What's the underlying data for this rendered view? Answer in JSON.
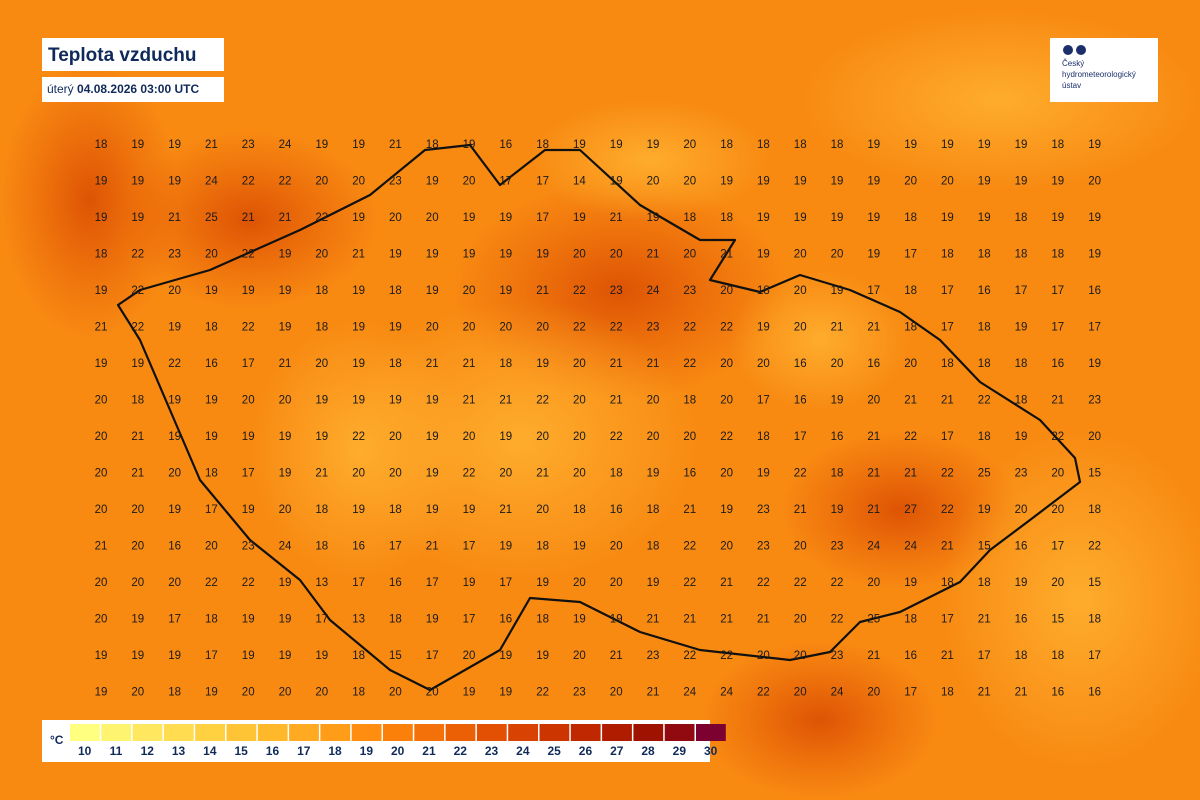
{
  "header": {
    "title": "Teplota vzduchu",
    "weekday": "úterý",
    "datetime": "04.08.2026 03:00 UTC"
  },
  "logo": {
    "lines": [
      "Český",
      "hydrometeorologický",
      "ústav"
    ]
  },
  "grid": {
    "rows": [
      [
        18,
        19,
        19,
        21,
        23,
        24,
        19,
        19,
        21,
        18,
        19,
        16,
        18,
        19,
        19,
        19,
        20,
        18,
        18,
        18,
        18,
        19,
        19,
        19,
        19,
        19,
        18,
        19
      ],
      [
        19,
        19,
        19,
        24,
        22,
        22,
        20,
        20,
        23,
        19,
        20,
        17,
        17,
        14,
        19,
        20,
        20,
        19,
        19,
        19,
        19,
        19,
        20,
        20,
        19,
        19,
        19,
        20
      ],
      [
        19,
        19,
        21,
        25,
        21,
        21,
        22,
        19,
        20,
        20,
        19,
        19,
        17,
        19,
        21,
        19,
        18,
        18,
        19,
        19,
        19,
        19,
        18,
        19,
        19,
        18,
        19,
        19
      ],
      [
        18,
        22,
        23,
        20,
        22,
        19,
        20,
        21,
        19,
        19,
        19,
        19,
        19,
        20,
        20,
        21,
        20,
        21,
        19,
        20,
        20,
        19,
        17,
        18,
        18,
        18,
        18,
        19
      ],
      [
        19,
        22,
        20,
        19,
        19,
        19,
        18,
        19,
        18,
        19,
        20,
        19,
        21,
        22,
        23,
        24,
        23,
        20,
        18,
        20,
        19,
        17,
        18,
        17,
        16,
        17,
        17,
        16
      ],
      [
        21,
        22,
        19,
        18,
        22,
        19,
        18,
        19,
        19,
        20,
        20,
        20,
        20,
        22,
        22,
        23,
        22,
        22,
        19,
        20,
        21,
        21,
        18,
        17,
        18,
        19,
        17,
        17
      ],
      [
        19,
        19,
        22,
        16,
        17,
        21,
        20,
        19,
        18,
        21,
        21,
        18,
        19,
        20,
        21,
        21,
        22,
        20,
        20,
        16,
        20,
        16,
        20,
        18,
        18,
        18,
        16,
        19
      ],
      [
        20,
        18,
        19,
        19,
        20,
        20,
        19,
        19,
        19,
        19,
        21,
        21,
        22,
        20,
        21,
        20,
        18,
        20,
        17,
        16,
        19,
        20,
        21,
        21,
        22,
        18,
        21,
        23
      ],
      [
        20,
        21,
        19,
        19,
        19,
        19,
        19,
        22,
        20,
        19,
        20,
        19,
        20,
        20,
        22,
        20,
        20,
        22,
        18,
        17,
        16,
        21,
        22,
        17,
        18,
        19,
        22,
        20
      ],
      [
        20,
        21,
        20,
        18,
        17,
        19,
        21,
        20,
        20,
        19,
        22,
        20,
        21,
        20,
        18,
        19,
        16,
        20,
        19,
        22,
        18,
        21,
        21,
        22,
        25,
        23,
        20,
        15
      ],
      [
        20,
        20,
        19,
        17,
        19,
        20,
        18,
        19,
        18,
        19,
        19,
        21,
        20,
        18,
        16,
        18,
        21,
        19,
        23,
        21,
        19,
        21,
        27,
        22,
        19,
        20,
        20,
        18
      ],
      [
        21,
        20,
        16,
        20,
        23,
        24,
        18,
        16,
        17,
        21,
        17,
        19,
        18,
        19,
        20,
        18,
        22,
        20,
        23,
        20,
        23,
        24,
        24,
        21,
        15,
        16,
        17,
        22
      ],
      [
        20,
        20,
        20,
        22,
        22,
        19,
        13,
        17,
        16,
        17,
        19,
        17,
        19,
        20,
        20,
        19,
        22,
        21,
        22,
        22,
        22,
        20,
        19,
        18,
        18,
        19,
        20,
        15
      ],
      [
        20,
        19,
        17,
        18,
        19,
        19,
        17,
        13,
        18,
        19,
        17,
        16,
        18,
        19,
        19,
        21,
        21,
        21,
        21,
        20,
        22,
        25,
        18,
        17,
        21,
        16,
        15,
        18
      ],
      [
        19,
        19,
        19,
        17,
        19,
        19,
        19,
        18,
        15,
        17,
        20,
        19,
        19,
        20,
        21,
        23,
        22,
        22,
        20,
        20,
        23,
        21,
        16,
        21,
        17,
        18,
        18,
        17
      ],
      [
        19,
        20,
        18,
        19,
        20,
        20,
        20,
        18,
        20,
        20,
        19,
        19,
        22,
        23,
        20,
        21,
        24,
        24,
        22,
        20,
        24,
        20,
        17,
        18,
        21,
        21,
        16,
        16
      ]
    ]
  },
  "legend": {
    "unit": "°C",
    "items": [
      {
        "label": 10,
        "color": "#ffff80"
      },
      {
        "label": 11,
        "color": "#fff470"
      },
      {
        "label": 12,
        "color": "#ffe860"
      },
      {
        "label": 13,
        "color": "#ffdc50"
      },
      {
        "label": 14,
        "color": "#ffd040"
      },
      {
        "label": 15,
        "color": "#ffc435"
      },
      {
        "label": 16,
        "color": "#ffb82a"
      },
      {
        "label": 17,
        "color": "#ffaa20"
      },
      {
        "label": 18,
        "color": "#ff9c18"
      },
      {
        "label": 19,
        "color": "#ff8e10"
      },
      {
        "label": 20,
        "color": "#fb800a"
      },
      {
        "label": 21,
        "color": "#f47008"
      },
      {
        "label": 22,
        "color": "#ec6005"
      },
      {
        "label": 23,
        "color": "#e35003"
      },
      {
        "label": 24,
        "color": "#d84202"
      },
      {
        "label": 25,
        "color": "#cc3400"
      },
      {
        "label": 26,
        "color": "#bf2800"
      },
      {
        "label": 27,
        "color": "#b01c00"
      },
      {
        "label": 28,
        "color": "#a01200"
      },
      {
        "label": 29,
        "color": "#900a10"
      },
      {
        "label": 30,
        "color": "#7c0030"
      }
    ]
  }
}
